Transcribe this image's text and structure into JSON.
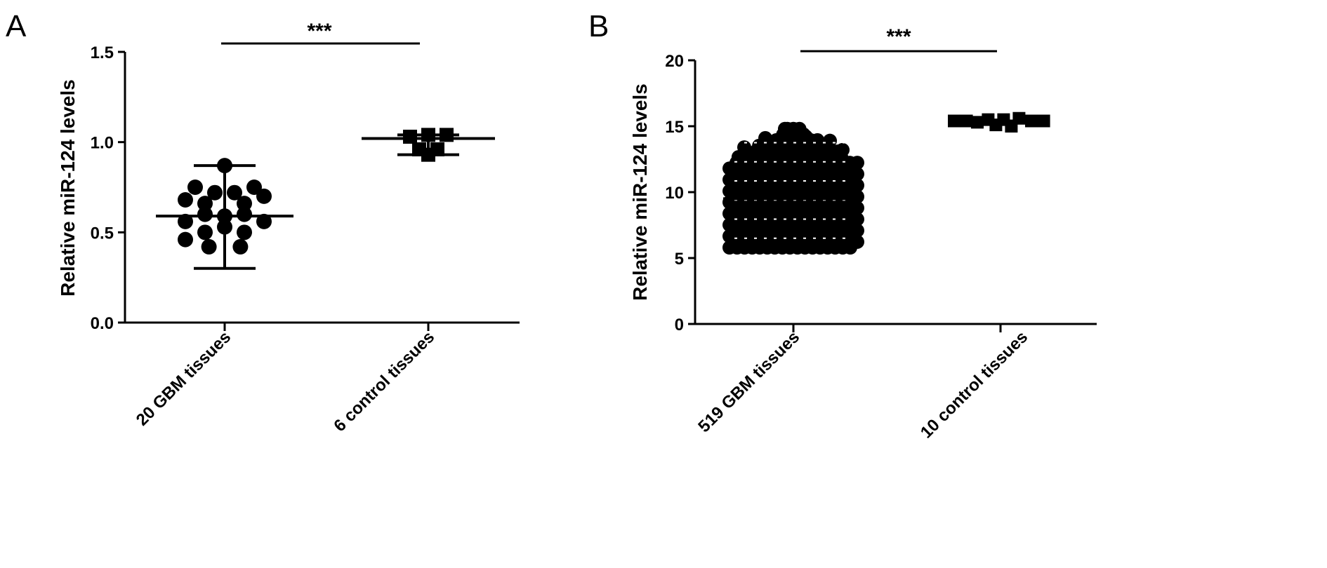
{
  "chart_data": [
    {
      "type": "scatter",
      "panel_label": "A",
      "ylabel": "Relative miR-124 levels",
      "ylim": [
        0,
        1.5
      ],
      "yticks": [
        "0.0",
        "0.5",
        "1.0",
        "1.5"
      ],
      "categories": [
        "20 GBM tissues",
        "6 control tissues"
      ],
      "significance": "***",
      "groups": [
        {
          "category": "20 GBM tissues",
          "marker": "circle",
          "mean": 0.59,
          "error": [
            0.3,
            0.87
          ],
          "points": [
            {
              "offset": 0,
              "y": 0.87
            },
            {
              "offset": -1.5,
              "y": 0.75
            },
            {
              "offset": -0.5,
              "y": 0.72
            },
            {
              "offset": 0.5,
              "y": 0.72
            },
            {
              "offset": 1.5,
              "y": 0.75
            },
            {
              "offset": -2,
              "y": 0.68
            },
            {
              "offset": -1,
              "y": 0.66
            },
            {
              "offset": 1,
              "y": 0.66
            },
            {
              "offset": 2,
              "y": 0.7
            },
            {
              "offset": -1,
              "y": 0.6
            },
            {
              "offset": 0,
              "y": 0.59
            },
            {
              "offset": 1,
              "y": 0.6
            },
            {
              "offset": -2,
              "y": 0.56
            },
            {
              "offset": 0,
              "y": 0.53
            },
            {
              "offset": 2,
              "y": 0.56
            },
            {
              "offset": -1,
              "y": 0.5
            },
            {
              "offset": 1,
              "y": 0.5
            },
            {
              "offset": -2,
              "y": 0.46
            },
            {
              "offset": -0.8,
              "y": 0.42
            },
            {
              "offset": 0.8,
              "y": 0.42
            }
          ]
        },
        {
          "category": "6 control tissues",
          "marker": "square",
          "mean": 1.02,
          "error": [
            0.93,
            1.04
          ],
          "points": [
            {
              "offset": -1,
              "y": 1.03
            },
            {
              "offset": 0,
              "y": 1.04
            },
            {
              "offset": 1,
              "y": 1.04
            },
            {
              "offset": -0.5,
              "y": 0.96
            },
            {
              "offset": 0.5,
              "y": 0.96
            },
            {
              "offset": 0,
              "y": 0.93
            }
          ]
        }
      ]
    },
    {
      "type": "scatter",
      "panel_label": "B",
      "ylabel": "Relative miR-124 levels",
      "ylim": [
        0,
        20
      ],
      "yticks": [
        "0",
        "5",
        "10",
        "15",
        "20"
      ],
      "categories": [
        "519 GBM tissues",
        "10 control tissues"
      ],
      "significance": "***",
      "groups": [
        {
          "category": "519 GBM tissues",
          "marker": "circle",
          "mean": 9.5,
          "n": 519,
          "ymin": 5.8,
          "ymax": 14.8,
          "points": []
        },
        {
          "category": "10 control tissues",
          "marker": "square",
          "mean": 15.4,
          "points": [
            {
              "offset": -3,
              "y": 15.4
            },
            {
              "offset": -2.2,
              "y": 15.4
            },
            {
              "offset": -1.5,
              "y": 15.3
            },
            {
              "offset": -0.8,
              "y": 15.5
            },
            {
              "offset": -0.3,
              "y": 15.1
            },
            {
              "offset": 0.2,
              "y": 15.5
            },
            {
              "offset": 0.7,
              "y": 15.0
            },
            {
              "offset": 1.2,
              "y": 15.6
            },
            {
              "offset": 2,
              "y": 15.4
            },
            {
              "offset": 2.8,
              "y": 15.4
            }
          ]
        }
      ]
    }
  ]
}
